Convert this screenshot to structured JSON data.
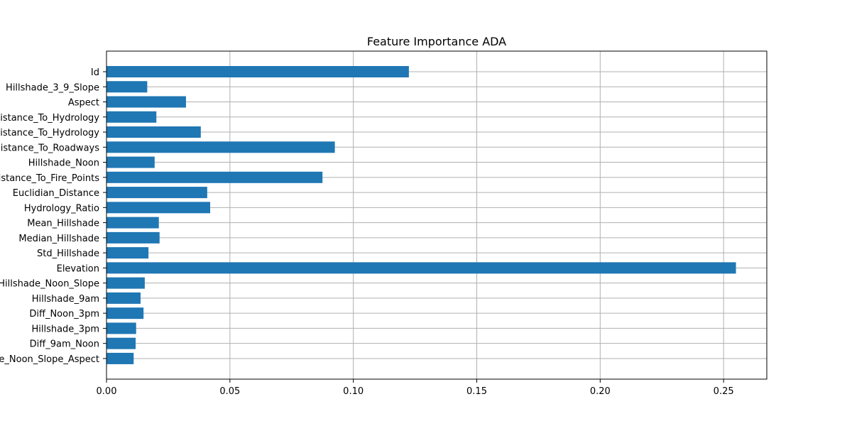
{
  "chart_data": {
    "type": "bar",
    "orientation": "horizontal",
    "title": "Feature Importance ADA",
    "xlabel": "",
    "ylabel": "",
    "xlim": [
      0,
      0.2675
    ],
    "xticks": [
      "0.00",
      "0.05",
      "0.10",
      "0.15",
      "0.20",
      "0.25"
    ],
    "grid": true,
    "bar_color": "#1f77b4",
    "categories": [
      "Id",
      "Hillshade_3_9_Slope",
      "Aspect",
      "Horizontal_Distance_To_Hydrology",
      "Vertical_Distance_To_Hydrology",
      "Horizontal_Distance_To_Roadways",
      "Hillshade_Noon",
      "Horizontal_Distance_To_Fire_Points",
      "Euclidian_Distance",
      "Hydrology_Ratio",
      "Mean_Hillshade",
      "Median_Hillshade",
      "Std_Hillshade",
      "Elevation",
      "Hillshade_Noon_Slope",
      "Hillshade_9am",
      "Diff_Noon_3pm",
      "Hillshade_3pm",
      "Diff_9am_Noon",
      "Hillshade_Noon_Slope_Aspect"
    ],
    "values": [
      0.1225,
      0.0165,
      0.0322,
      0.0202,
      0.0382,
      0.0925,
      0.0195,
      0.0875,
      0.0408,
      0.042,
      0.0212,
      0.0215,
      0.017,
      0.255,
      0.0155,
      0.0138,
      0.015,
      0.012,
      0.0118,
      0.011
    ]
  }
}
